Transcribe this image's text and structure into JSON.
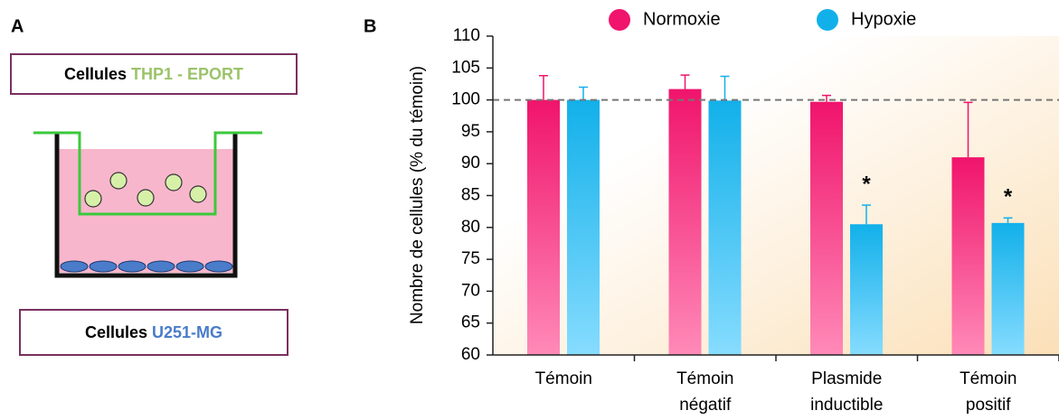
{
  "panel_a": {
    "label": "A",
    "top_box": {
      "prefix": "Cellules",
      "highlight": "THP1 - EPORT"
    },
    "bottom_box": {
      "prefix": "Cellules",
      "highlight": "U251-MG"
    }
  },
  "chart_data": {
    "type": "bar",
    "panel_label": "B",
    "y_label": "Nombre de cellules (% du témoin)",
    "categories": [
      "Témoin",
      "Témoin négatif",
      "Plasmide inductible",
      "Témoin positif"
    ],
    "series": [
      {
        "name": "Normoxie",
        "color": "#f0146c",
        "values": [
          100,
          101.7,
          99.7,
          91
        ],
        "errors": [
          3.8,
          2.2,
          1,
          8.6
        ]
      },
      {
        "name": "Hypoxie",
        "color": "#12b0ea",
        "values": [
          100,
          99.9,
          80.5,
          80.7
        ],
        "errors": [
          2,
          3.8,
          3,
          0.8
        ]
      }
    ],
    "ylim": [
      60,
      110
    ],
    "yticks": [
      60,
      65,
      70,
      75,
      80,
      85,
      90,
      95,
      100,
      105,
      110
    ],
    "reference_line": 100,
    "annotations": [
      {
        "text": "*",
        "series": 1,
        "index": 2
      },
      {
        "text": "*",
        "series": 1,
        "index": 3
      }
    ]
  }
}
